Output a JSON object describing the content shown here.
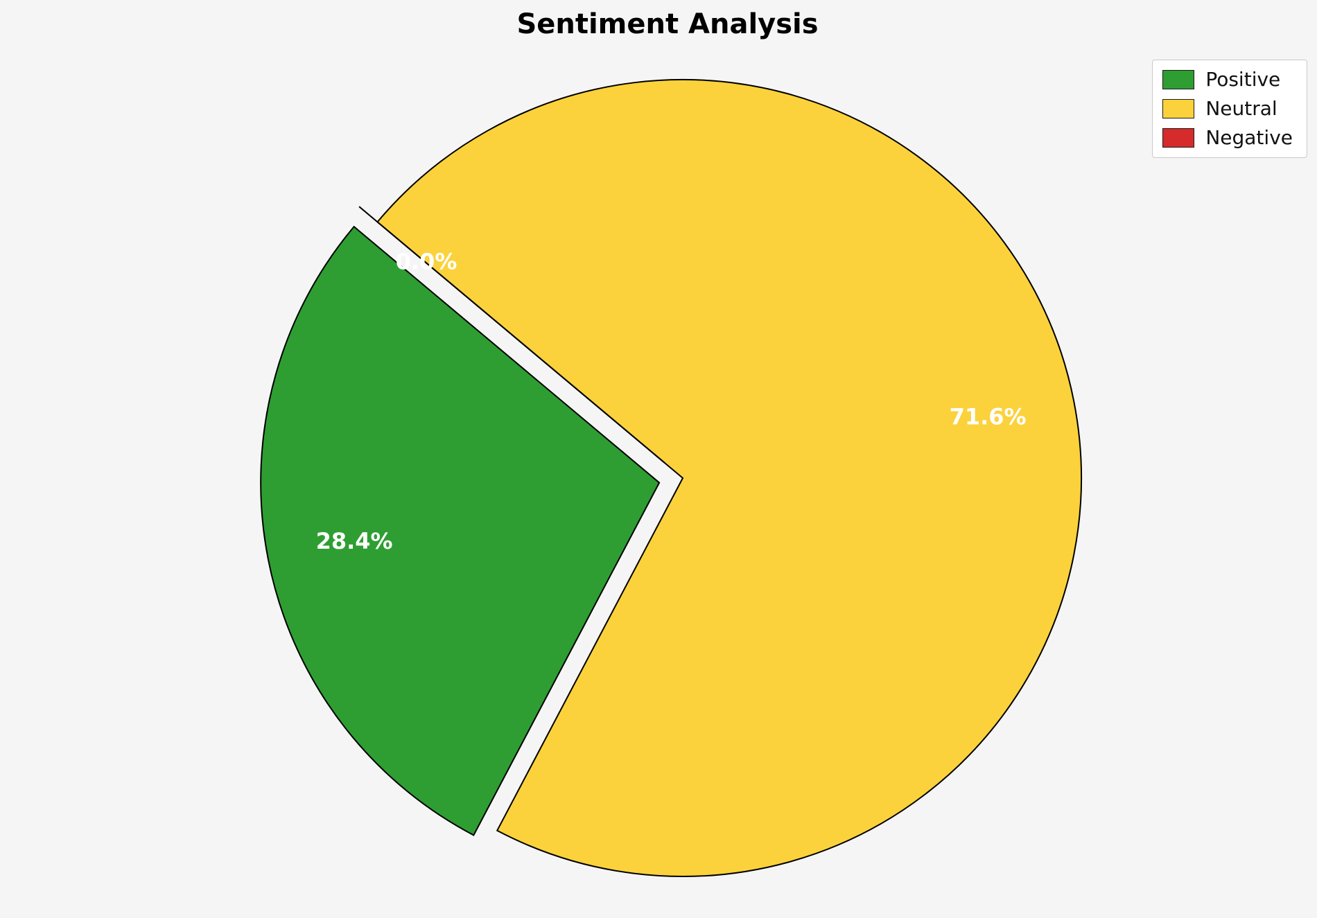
{
  "background_color": "#f5f5f5",
  "chart_data": {
    "type": "pie",
    "title": "Sentiment Analysis",
    "labels": [
      "Positive",
      "Neutral",
      "Negative"
    ],
    "values": [
      28.4,
      71.6,
      0.0
    ],
    "percent_labels": [
      "28.4%",
      "71.6%",
      "0.0%"
    ],
    "colors": [
      "#2e9e32",
      "#fbd23c",
      "#d62b2b"
    ],
    "explode": [
      0.06,
      0,
      0.06
    ],
    "start_angle": 140,
    "counterclockwise": true,
    "edge_color": "#000000",
    "percent_label_color": "#ffffff",
    "legend_position": "upper right"
  },
  "legend": {
    "items": [
      {
        "label": "Positive",
        "color": "#2e9e32"
      },
      {
        "label": "Neutral",
        "color": "#fbd23c"
      },
      {
        "label": "Negative",
        "color": "#d62b2b"
      }
    ]
  }
}
